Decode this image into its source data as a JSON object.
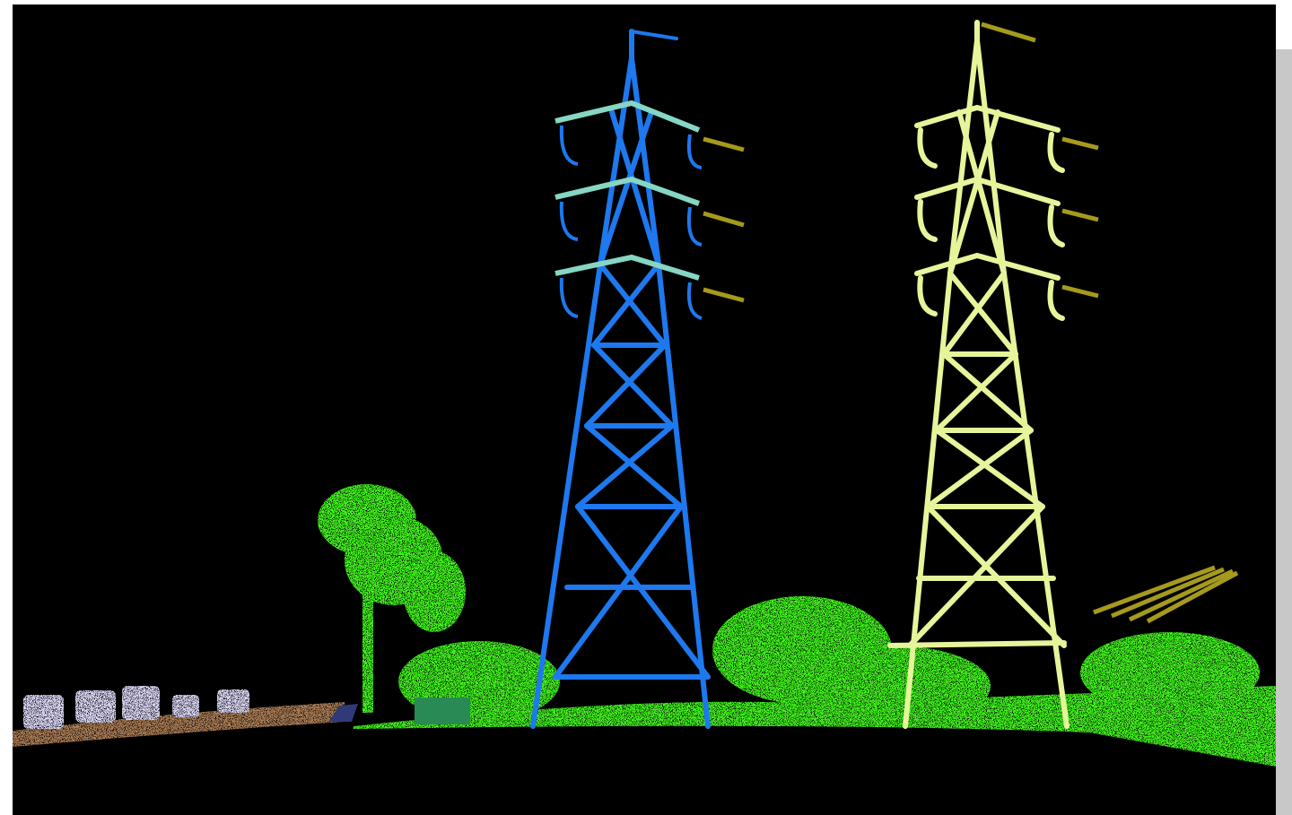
{
  "scene": {
    "type": "lidar-point-cloud-classification",
    "background_color": "#000000",
    "classes": [
      {
        "name": "tower-a",
        "color": "#1e78ee"
      },
      {
        "name": "tower-a-crossarm",
        "color": "#86d6c4"
      },
      {
        "name": "tower-b",
        "color": "#e6f59a"
      },
      {
        "name": "conductor",
        "color": "#a59a1c"
      },
      {
        "name": "vegetation",
        "color": "#3fef1c"
      },
      {
        "name": "ground",
        "color": "#a87a52"
      },
      {
        "name": "vehicle",
        "color": "#d8d4f2"
      },
      {
        "name": "structure",
        "color": "#2a8a55"
      },
      {
        "name": "water",
        "color": "#303a78"
      }
    ]
  }
}
